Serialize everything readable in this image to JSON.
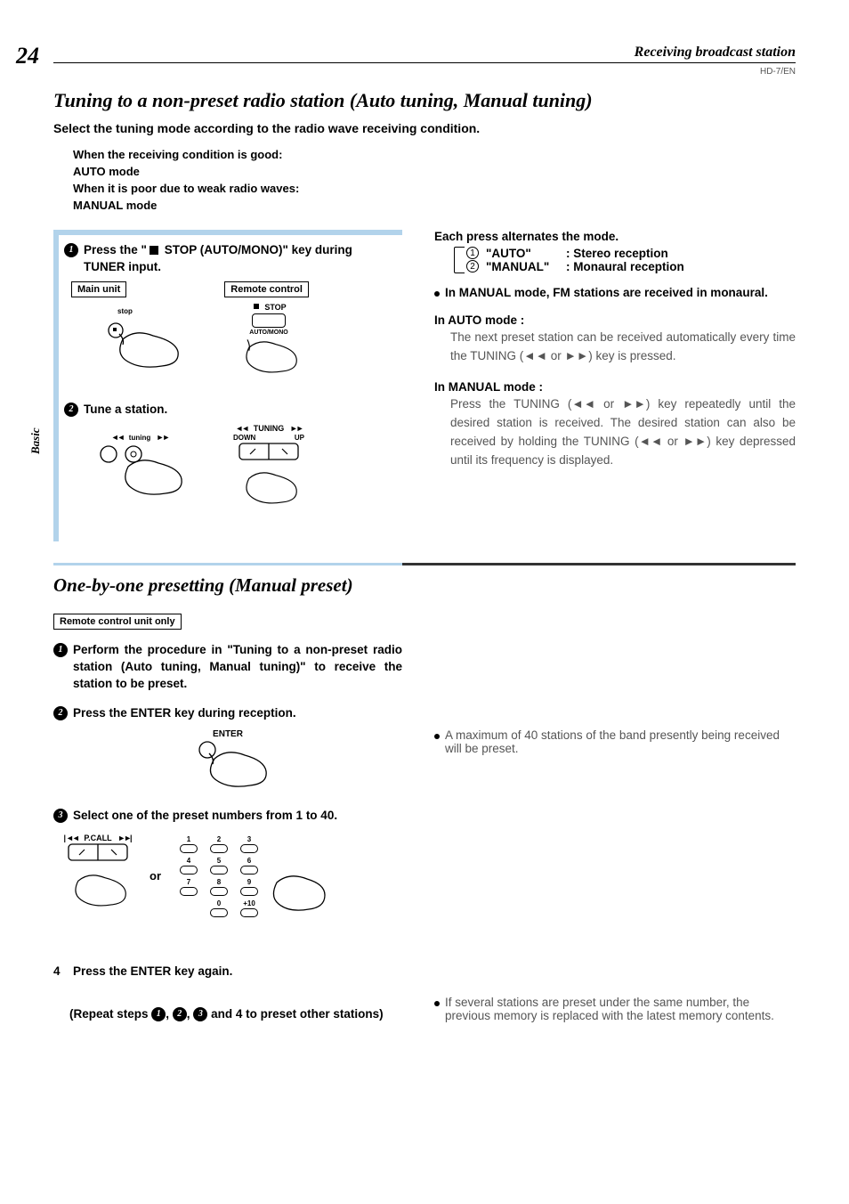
{
  "page_number": "24",
  "header": {
    "section": "Receiving broadcast station",
    "doc_code": "HD-7/EN"
  },
  "side_tab": "Basic",
  "section1": {
    "title": "Tuning to a non-preset radio station (Auto tuning, Manual tuning)",
    "intro": "Select the tuning mode according to the radio wave receiving condition.",
    "cond1_a": "When the receiving condition is good:",
    "cond1_b": "AUTO mode",
    "cond2_a": "When it is poor due to weak radio waves:",
    "cond2_b": "MANUAL mode",
    "step1_pre": "Press the \"",
    "step1_post": " STOP (AUTO/MONO)\" key during TUNER input.",
    "label_main": "Main unit",
    "label_remote": "Remote control",
    "fig_stop_label": "stop",
    "fig_stop_btn_top": "STOP",
    "fig_stop_btn_bot": "AUTO/MONO",
    "step2": "Tune a station.",
    "fig_tuning_center": "tuning",
    "fig_tuning_top": "TUNING",
    "fig_tuning_down": "DOWN",
    "fig_tuning_up": "UP",
    "r_intro": "Each press alternates the mode.",
    "r_mode1_name": "\"AUTO\"",
    "r_mode1_desc": ": Stereo reception",
    "r_mode2_name": "\"MANUAL\"",
    "r_mode2_desc": ": Monaural reception",
    "r_bullet1": "In MANUAL mode, FM stations are received in monaural.",
    "r_auto_h": "In AUTO mode :",
    "r_auto_b": "The next preset station can be received automatically every time the TUNING (◄◄ or ►►) key is pressed.",
    "r_man_h": "In MANUAL mode :",
    "r_man_b": "Press the TUNING (◄◄ or ►►) key repeatedly until the desired station is received. The desired station can also be received by holding the TUNING (◄◄ or ►►) key depressed until its frequency is displayed."
  },
  "section2": {
    "title": "One-by-one presetting (Manual preset)",
    "note_box": "Remote control unit only",
    "step1": "Perform the procedure in \"Tuning to a non-preset radio station (Auto tuning, Manual tuning)\" to receive the station to be preset.",
    "step2": "Press the ENTER key during reception.",
    "enter_label": "ENTER",
    "step3": "Select one of the preset numbers from 1 to 40.",
    "pcall_label": "P.CALL",
    "or_label": "or",
    "keypad": [
      "1",
      "2",
      "3",
      "4",
      "5",
      "6",
      "7",
      "8",
      "9",
      "0",
      "+10"
    ],
    "step4_num": "4",
    "step4": "Press the ENTER key again.",
    "repeat_pre": "(Repeat steps ",
    "repeat_mid1": ", ",
    "repeat_mid2": ", ",
    "repeat_post": " and 4 to preset other stations)",
    "r_bullet1": "A maximum of 40 stations of the band presently being received will be preset.",
    "r_bullet2": "If several stations are preset under the same number, the previous memory is replaced with the latest memory contents."
  },
  "colors": {
    "frame_blue": "#b2d3eb",
    "text_gray": "#555555"
  }
}
